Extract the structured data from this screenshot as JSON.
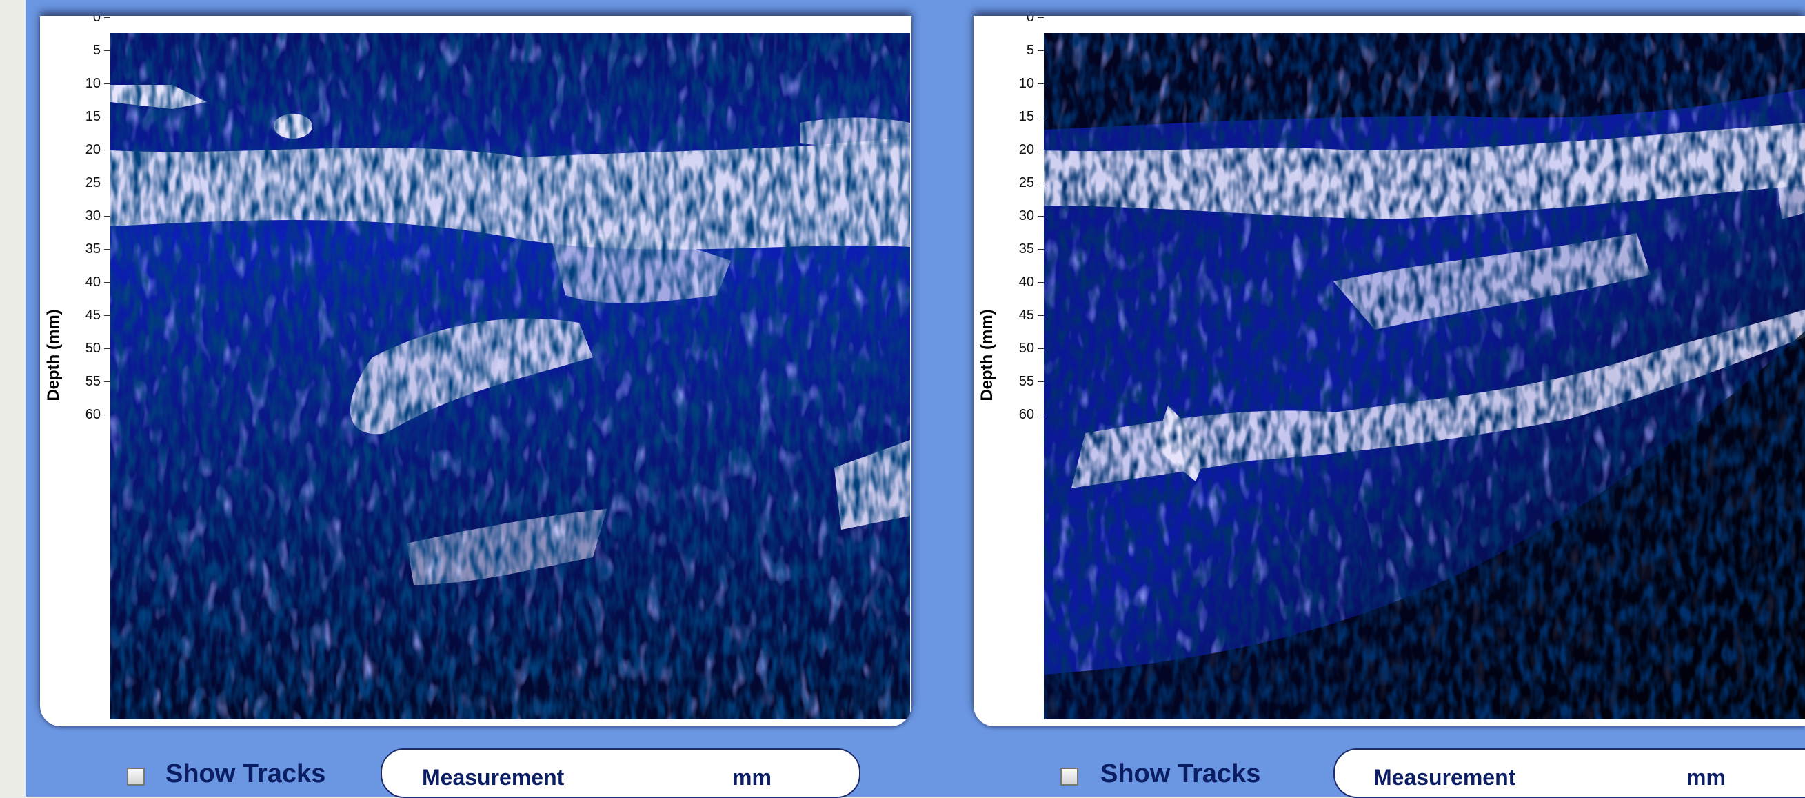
{
  "panels": [
    {
      "axis_title": "Depth (mm)",
      "ticks": [
        "0",
        "5",
        "10",
        "15",
        "20",
        "25",
        "30",
        "35",
        "40",
        "45",
        "50",
        "55",
        "60"
      ],
      "show_tracks_label": "Show Tracks",
      "measurement_label": "Measurement",
      "measurement_unit": "mm",
      "show_tracks_checked": false
    },
    {
      "axis_title": "Depth (mm)",
      "ticks": [
        "0",
        "5",
        "10",
        "15",
        "20",
        "25",
        "30",
        "35",
        "40",
        "45",
        "50",
        "55",
        "60"
      ],
      "show_tracks_label": "Show Tracks",
      "measurement_label": "Measurement",
      "measurement_unit": "mm",
      "show_tracks_checked": false
    }
  ],
  "colors": {
    "panel_bg": "#6a96e2",
    "scan_bright": "#e6e4fb",
    "scan_deep": "#000010",
    "label_text": "#0b1d63"
  }
}
